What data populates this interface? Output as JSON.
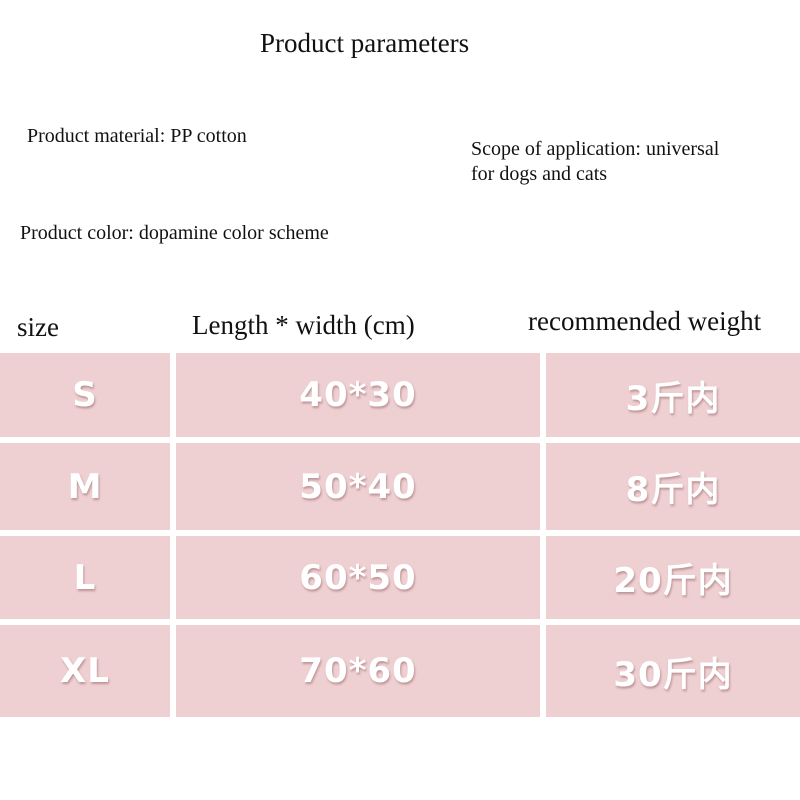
{
  "title": "Product parameters",
  "material": "Product material: PP cotton",
  "scope_line1": "Scope of application: universal",
  "scope_line2": "for dogs and cats",
  "color": "Product color: dopamine color scheme",
  "table": {
    "headers": [
      "size",
      "Length * width (cm)",
      "recommended weight"
    ],
    "rows": [
      [
        "S",
        "40*30",
        "3斤内"
      ],
      [
        "M",
        "50*40",
        "8斤内"
      ],
      [
        "L",
        "60*50",
        "20斤内"
      ],
      [
        "XL",
        "70*60",
        "30斤内"
      ]
    ]
  },
  "colors": {
    "cell": "#efd0d2",
    "cell_text": "#ffffff"
  }
}
